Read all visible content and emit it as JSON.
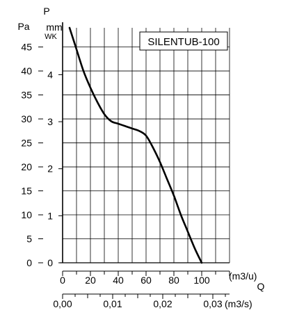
{
  "chart_data": {
    "type": "line",
    "title": "SILENTUB-100",
    "y_axis_symbol": "P",
    "y_left_unit": "Pa",
    "y_right_unit_line1": "mm",
    "y_right_unit_line2": "WK",
    "x_axis_symbol": "Q",
    "x_top_unit": "(m3/u)",
    "x_bottom_unit": "(m3/s)",
    "y_left_ticks": [
      "0",
      "5",
      "10",
      "15",
      "20",
      "25",
      "30",
      "35",
      "40",
      "45"
    ],
    "y_left_ticks_values": [
      0,
      5,
      10,
      15,
      20,
      25,
      30,
      35,
      40,
      45
    ],
    "ylim": [
      0,
      49
    ],
    "y_right_ticks": [
      "0",
      "1",
      "2",
      "3",
      "4"
    ],
    "y_right_ticks_values": [
      0,
      1,
      2,
      3,
      4
    ],
    "x_top_ticks": [
      "0",
      "20",
      "40",
      "60",
      "80",
      "100"
    ],
    "x_top_ticks_values": [
      0,
      20,
      40,
      60,
      80,
      100
    ],
    "xlim": [
      0,
      120
    ],
    "x_bottom_ticks": [
      "0,00",
      "0,01",
      "0,02",
      "0,03"
    ],
    "x_bottom_ticks_values": [
      0,
      0.01,
      0.02,
      0.03
    ],
    "grid": true,
    "series": [
      {
        "color": "#000000",
        "x": [
          5,
          10,
          15,
          20,
          25,
          30,
          35,
          40,
          45,
          50,
          55,
          60,
          65,
          70,
          75,
          80,
          85,
          90,
          95,
          100
        ],
        "y": [
          49,
          44.5,
          40,
          36.5,
          33.5,
          31,
          29.5,
          29,
          28.5,
          28,
          27.5,
          26.5,
          24,
          21,
          17.5,
          14,
          10,
          6.5,
          3,
          0
        ]
      }
    ]
  }
}
